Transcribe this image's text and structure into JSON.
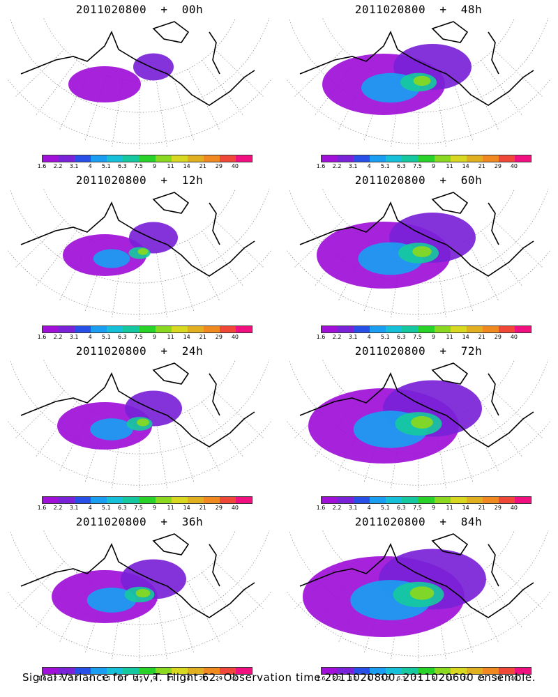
{
  "panels": [
    {
      "date": "2011020800",
      "lead": "00h",
      "spread": 0.15
    },
    {
      "date": "2011020800",
      "lead": "48h",
      "spread": 0.6
    },
    {
      "date": "2011020800",
      "lead": "12h",
      "spread": 0.25
    },
    {
      "date": "2011020800",
      "lead": "60h",
      "spread": 0.7
    },
    {
      "date": "2011020800",
      "lead": "24h",
      "spread": 0.35
    },
    {
      "date": "2011020800",
      "lead": "72h",
      "spread": 0.85
    },
    {
      "date": "2011020800",
      "lead": "36h",
      "spread": 0.45
    },
    {
      "date": "2011020800",
      "lead": "84h",
      "spread": 0.95
    }
  ],
  "colorbar": {
    "labels": [
      "1.6",
      "2.2",
      "3.1",
      "4",
      "5.1",
      "6.3",
      "7.5",
      "9",
      "11",
      "14",
      "21",
      "29",
      "40"
    ],
    "colors": [
      "#a010d8",
      "#7a22d8",
      "#2850e8",
      "#1a9ef2",
      "#16c0d8",
      "#16c8a0",
      "#28d228",
      "#8ad820",
      "#d8d820",
      "#e0b020",
      "#f08a20",
      "#f04838",
      "#f01080"
    ]
  },
  "footer": "Signal Variance for u,v,T. Flight 62. Observation time 2011020800. 2011020600 ensemble."
}
